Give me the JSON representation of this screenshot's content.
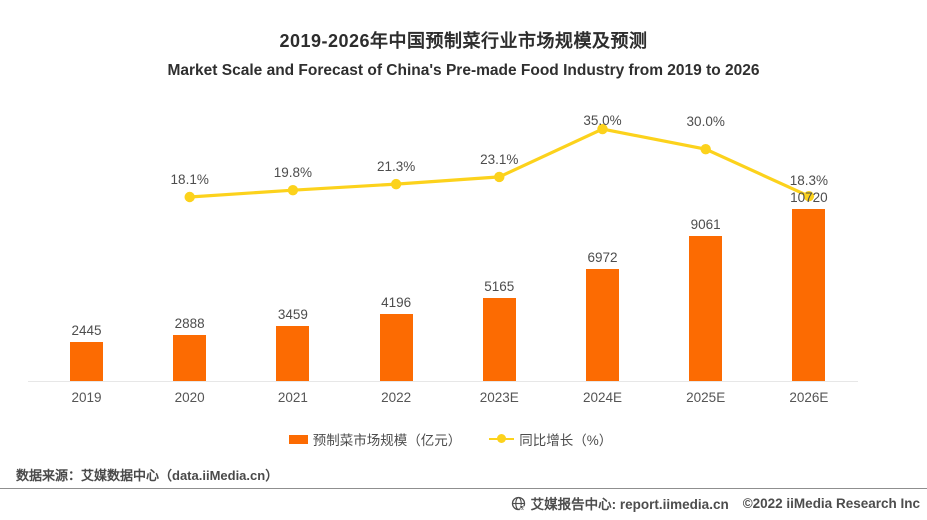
{
  "page": {
    "title": "2019-2026年中国预制菜行业市场规模及预测",
    "subtitle": "Market Scale and Forecast of China's Pre-made Food Industry from 2019 to 2026"
  },
  "chart_data": {
    "type": "bar",
    "categories": [
      "2019",
      "2020",
      "2021",
      "2022",
      "2023E",
      "2024E",
      "2025E",
      "2026E"
    ],
    "series": [
      {
        "name": "预制菜市场规模（亿元）",
        "type": "bar",
        "color": "#fc6b02",
        "values": [
          2445,
          2888,
          3459,
          4196,
          5165,
          6972,
          9061,
          10720
        ]
      },
      {
        "name": "同比增长（%）",
        "type": "line",
        "color": "#fcd21c",
        "values": [
          null,
          18.1,
          19.8,
          21.3,
          23.1,
          35.0,
          30.0,
          18.3
        ]
      }
    ],
    "bar_value_labels": [
      "2445",
      "2888",
      "3459",
      "4196",
      "5165",
      "6972",
      "9061",
      "10720"
    ],
    "line_value_labels": [
      null,
      "18.1%",
      "19.8%",
      "21.3%",
      "23.1%",
      "35.0%",
      "30.0%",
      "18.3%"
    ],
    "title": "2019-2026年中国预制菜行业市场规模及预测",
    "subtitle": "Market Scale and Forecast of China's Pre-made Food Industry from 2019 to 2026",
    "xlabel": "",
    "ylabel": "",
    "ylim_bar": [
      0,
      10720
    ],
    "grid": false,
    "legend_position": "bottom",
    "axes_visible": {
      "x": true,
      "y_left": false,
      "y_right": false
    }
  },
  "legend": {
    "bar_label": "预制菜市场规模（亿元）",
    "line_label": "同比增长（%）"
  },
  "footer": {
    "source": "数据来源：艾媒数据中心（data.iiMedia.cn）",
    "site": "艾媒报告中心: report.iimedia.cn",
    "copyright": "©2022  iiMedia Research Inc"
  },
  "colors": {
    "bar": "#fc6b02",
    "line": "#fcd21c",
    "title_text": "#2d2d2d",
    "label_text": "#4d4d4d",
    "axis_line": "#e7e7e7",
    "footer_rule": "#8f8f8f"
  }
}
